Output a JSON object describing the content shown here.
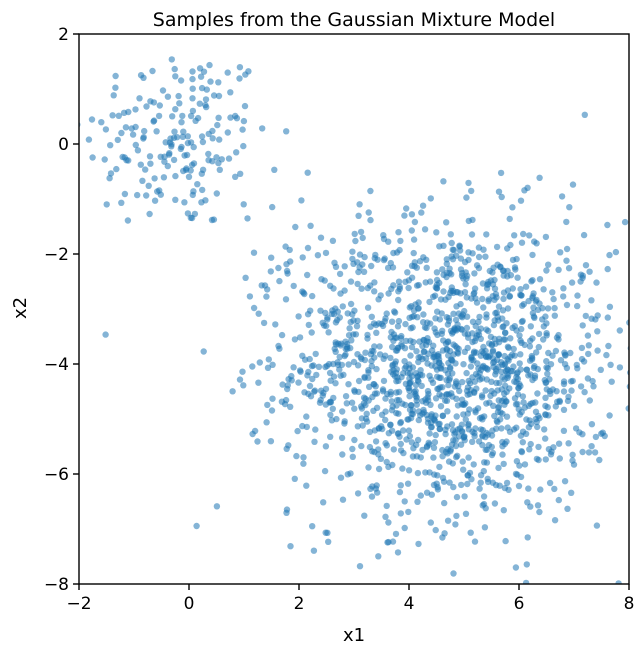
{
  "chart_data": {
    "type": "scatter",
    "title": "Samples from the Gaussian Mixture Model",
    "xlabel": "x1",
    "ylabel": "x2",
    "xlim": [
      -2,
      8
    ],
    "ylim": [
      -8,
      2
    ],
    "xticks": [
      -2,
      0,
      2,
      4,
      6,
      8
    ],
    "yticks": [
      -8,
      -6,
      -4,
      -2,
      0,
      2
    ],
    "xtick_labels": [
      "−2",
      "0",
      "2",
      "4",
      "6",
      "8"
    ],
    "ytick_labels": [
      "−8",
      "−6",
      "−4",
      "−2",
      "0",
      "2"
    ],
    "grid": false,
    "legend": "none",
    "marker_color": "#1f77b4",
    "marker_alpha": 0.55,
    "clusters": [
      {
        "center": [
          -0.2,
          0.1
        ],
        "std": [
          0.85,
          0.85
        ],
        "count": 190
      },
      {
        "center": [
          4.8,
          -4.1
        ],
        "std": [
          1.45,
          1.35
        ],
        "count": 1450
      },
      {
        "center": [
          2.2,
          -2.6
        ],
        "std": [
          0.7,
          0.9
        ],
        "count": 60
      }
    ]
  }
}
